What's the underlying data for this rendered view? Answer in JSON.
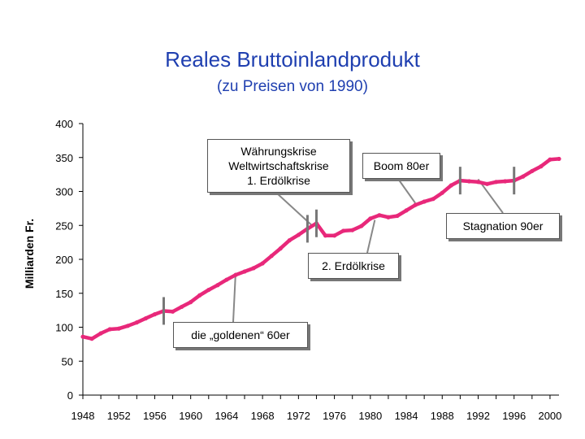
{
  "chart_data": {
    "type": "line",
    "title": "Reales Bruttoinlandprodukt",
    "subtitle": "(zu Preisen von 1990)",
    "ylabel": "Milliarden Fr.",
    "xlabel": "",
    "ylim": [
      0,
      400
    ],
    "xlim": [
      1948,
      2001
    ],
    "yticks": [
      "0",
      "50",
      "100",
      "150",
      "200",
      "250",
      "300",
      "350",
      "400"
    ],
    "xticks": [
      "1948",
      "1952",
      "1956",
      "1960",
      "1964",
      "1968",
      "1972",
      "1976",
      "1980",
      "1984",
      "1988",
      "1992",
      "1996",
      "2000"
    ],
    "line_color": "#e8287a",
    "series": [
      {
        "name": "",
        "x": [
          1948,
          1949,
          1950,
          1951,
          1952,
          1953,
          1954,
          1955,
          1956,
          1957,
          1958,
          1959,
          1960,
          1961,
          1962,
          1963,
          1964,
          1965,
          1966,
          1967,
          1968,
          1969,
          1970,
          1971,
          1972,
          1973,
          1974,
          1975,
          1976,
          1977,
          1978,
          1979,
          1980,
          1981,
          1982,
          1983,
          1984,
          1985,
          1986,
          1987,
          1988,
          1989,
          1990,
          1991,
          1992,
          1993,
          1994,
          1995,
          1996,
          1997,
          1998,
          1999,
          2000,
          2001
        ],
        "values": [
          86,
          83,
          91,
          97,
          98,
          102,
          107,
          113,
          119,
          124,
          123,
          130,
          137,
          147,
          155,
          162,
          170,
          177,
          182,
          187,
          194,
          205,
          216,
          228,
          236,
          245,
          253,
          235,
          235,
          242,
          243,
          249,
          260,
          265,
          262,
          264,
          272,
          280,
          285,
          289,
          298,
          309,
          316,
          315,
          314,
          311,
          314,
          315,
          316,
          322,
          330,
          337,
          347,
          348
        ]
      }
    ],
    "markers_years": [
      1957,
      1973,
      1974,
      1990,
      1996
    ],
    "annotations": [
      {
        "text": "Währungskrise\nWeltwirtschaftskrise\n1. Erdölkrise",
        "target_x": 1973.5,
        "target_y": 250
      },
      {
        "text": "Boom 80er",
        "target_x": 1985,
        "target_y": 283
      },
      {
        "text": "Stagnation 90er",
        "target_x": 1992,
        "target_y": 318
      },
      {
        "text": "2. Erdölkrise",
        "target_x": 1980.5,
        "target_y": 258
      },
      {
        "text": "die „goldenen“ 60er",
        "target_x": 1965,
        "target_y": 180
      }
    ]
  }
}
